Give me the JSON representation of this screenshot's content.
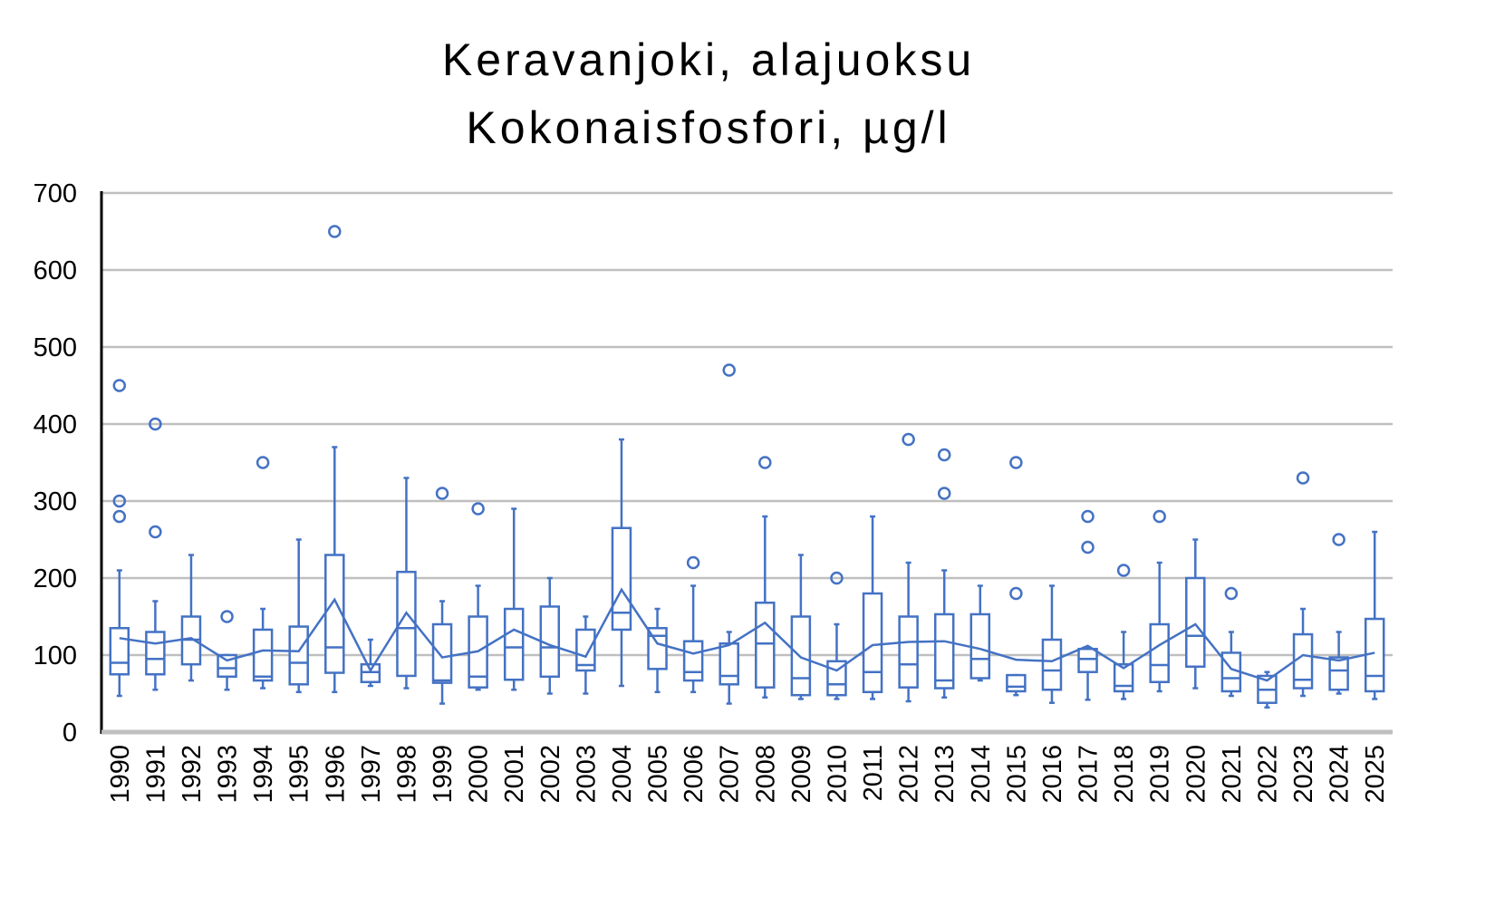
{
  "chart_data": {
    "type": "box",
    "title": [
      "Keravanjoki, alajuoksu",
      "Kokonaisfosfori, µg/l"
    ],
    "xlabel": "",
    "ylabel": "",
    "ylim": [
      0,
      700
    ],
    "yticks": [
      0,
      100,
      200,
      300,
      400,
      500,
      600,
      700
    ],
    "grid": true,
    "color": "#4472C4",
    "categories": [
      "1990",
      "1991",
      "1992",
      "1993",
      "1994",
      "1995",
      "1996",
      "1997",
      "1998",
      "1999",
      "2000",
      "2001",
      "2002",
      "2003",
      "2004",
      "2005",
      "2006",
      "2007",
      "2008",
      "2009",
      "2010",
      "2011",
      "2012",
      "2013",
      "2014",
      "2015",
      "2016",
      "2017",
      "2018",
      "2019",
      "2020",
      "2021",
      "2022",
      "2023",
      "2024",
      "2025"
    ],
    "boxes": [
      {
        "min": 47,
        "q1": 75,
        "median": 90,
        "q3": 135,
        "max": 210,
        "mean": 122,
        "outliers": [
          450,
          300,
          280
        ]
      },
      {
        "min": 55,
        "q1": 75,
        "median": 95,
        "q3": 130,
        "max": 170,
        "mean": 115,
        "outliers": [
          400,
          260
        ]
      },
      {
        "min": 67,
        "q1": 88,
        "median": 120,
        "q3": 150,
        "max": 230,
        "mean": 122,
        "outliers": []
      },
      {
        "min": 55,
        "q1": 72,
        "median": 83,
        "q3": 100,
        "max": 100,
        "mean": 93,
        "outliers": [
          150
        ]
      },
      {
        "min": 57,
        "q1": 67,
        "median": 72,
        "q3": 133,
        "max": 160,
        "mean": 106,
        "outliers": [
          350
        ]
      },
      {
        "min": 52,
        "q1": 62,
        "median": 90,
        "q3": 137,
        "max": 250,
        "mean": 105,
        "outliers": []
      },
      {
        "min": 52,
        "q1": 77,
        "median": 110,
        "q3": 230,
        "max": 370,
        "mean": 172,
        "outliers": [
          650
        ]
      },
      {
        "min": 60,
        "q1": 65,
        "median": 78,
        "q3": 88,
        "max": 120,
        "mean": 80,
        "outliers": []
      },
      {
        "min": 57,
        "q1": 73,
        "median": 135,
        "q3": 208,
        "max": 330,
        "mean": 155,
        "outliers": []
      },
      {
        "min": 37,
        "q1": 64,
        "median": 67,
        "q3": 140,
        "max": 170,
        "mean": 97,
        "outliers": [
          310
        ]
      },
      {
        "min": 55,
        "q1": 58,
        "median": 72,
        "q3": 150,
        "max": 190,
        "mean": 105,
        "outliers": [
          290
        ]
      },
      {
        "min": 55,
        "q1": 68,
        "median": 110,
        "q3": 160,
        "max": 290,
        "mean": 133,
        "outliers": []
      },
      {
        "min": 50,
        "q1": 72,
        "median": 110,
        "q3": 163,
        "max": 200,
        "mean": 113,
        "outliers": []
      },
      {
        "min": 50,
        "q1": 80,
        "median": 87,
        "q3": 133,
        "max": 150,
        "mean": 98,
        "outliers": []
      },
      {
        "min": 60,
        "q1": 133,
        "median": 155,
        "q3": 265,
        "max": 380,
        "mean": 185,
        "outliers": []
      },
      {
        "min": 52,
        "q1": 82,
        "median": 125,
        "q3": 135,
        "max": 160,
        "mean": 115,
        "outliers": []
      },
      {
        "min": 52,
        "q1": 67,
        "median": 78,
        "q3": 118,
        "max": 190,
        "mean": 102,
        "outliers": [
          220
        ]
      },
      {
        "min": 37,
        "q1": 62,
        "median": 73,
        "q3": 115,
        "max": 130,
        "mean": 113,
        "outliers": [
          470
        ]
      },
      {
        "min": 45,
        "q1": 58,
        "median": 115,
        "q3": 168,
        "max": 280,
        "mean": 142,
        "outliers": [
          350
        ]
      },
      {
        "min": 43,
        "q1": 48,
        "median": 70,
        "q3": 150,
        "max": 230,
        "mean": 97,
        "outliers": []
      },
      {
        "min": 43,
        "q1": 48,
        "median": 62,
        "q3": 92,
        "max": 140,
        "mean": 80,
        "outliers": [
          200
        ]
      },
      {
        "min": 43,
        "q1": 52,
        "median": 78,
        "q3": 180,
        "max": 280,
        "mean": 113,
        "outliers": []
      },
      {
        "min": 40,
        "q1": 58,
        "median": 88,
        "q3": 150,
        "max": 220,
        "mean": 117,
        "outliers": [
          380
        ]
      },
      {
        "min": 45,
        "q1": 57,
        "median": 67,
        "q3": 153,
        "max": 210,
        "mean": 118,
        "outliers": [
          360,
          310
        ]
      },
      {
        "min": 67,
        "q1": 70,
        "median": 95,
        "q3": 153,
        "max": 190,
        "mean": 108,
        "outliers": []
      },
      {
        "min": 48,
        "q1": 53,
        "median": 59,
        "q3": 74,
        "max": 74,
        "mean": 94,
        "outliers": [
          350,
          180
        ]
      },
      {
        "min": 38,
        "q1": 55,
        "median": 80,
        "q3": 120,
        "max": 190,
        "mean": 92,
        "outliers": []
      },
      {
        "min": 42,
        "q1": 78,
        "median": 95,
        "q3": 108,
        "max": 110,
        "mean": 112,
        "outliers": [
          280,
          240
        ]
      },
      {
        "min": 43,
        "q1": 53,
        "median": 60,
        "q3": 88,
        "max": 130,
        "mean": 83,
        "outliers": [
          210
        ]
      },
      {
        "min": 53,
        "q1": 65,
        "median": 87,
        "q3": 140,
        "max": 220,
        "mean": 113,
        "outliers": [
          280
        ]
      },
      {
        "min": 57,
        "q1": 85,
        "median": 125,
        "q3": 200,
        "max": 250,
        "mean": 140,
        "outliers": []
      },
      {
        "min": 47,
        "q1": 53,
        "median": 70,
        "q3": 103,
        "max": 130,
        "mean": 82,
        "outliers": [
          180
        ]
      },
      {
        "min": 32,
        "q1": 38,
        "median": 55,
        "q3": 73,
        "max": 78,
        "mean": 67,
        "outliers": []
      },
      {
        "min": 47,
        "q1": 57,
        "median": 68,
        "q3": 127,
        "max": 160,
        "mean": 100,
        "outliers": [
          330
        ]
      },
      {
        "min": 50,
        "q1": 55,
        "median": 80,
        "q3": 97,
        "max": 130,
        "mean": 93,
        "outliers": [
          250
        ]
      },
      {
        "min": 43,
        "q1": 53,
        "median": 73,
        "q3": 147,
        "max": 260,
        "mean": 103,
        "outliers": []
      }
    ]
  }
}
